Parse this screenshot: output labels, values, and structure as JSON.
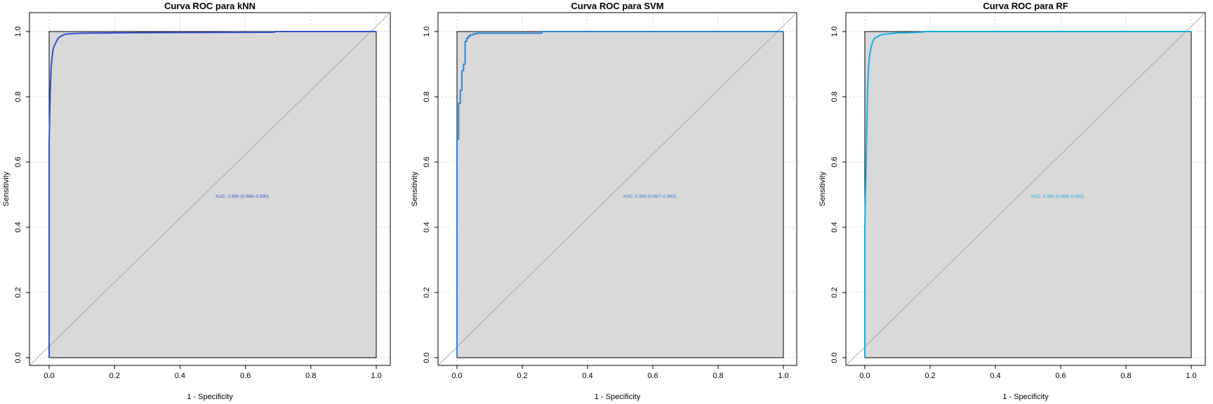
{
  "colors": {
    "background": "#ffffff",
    "plot_fill": "#d9d9d9",
    "grid": "#cfcfcf",
    "diagonal": "#9a9a9a",
    "frame": "#000000"
  },
  "chart_data": [
    {
      "type": "line",
      "title": "Curva ROC para kNN",
      "xlabel": "1 - Specificity",
      "ylabel": "Sensitivity",
      "xlim": [
        0,
        1
      ],
      "ylim": [
        0,
        1
      ],
      "x_ticks": [
        0.0,
        0.2,
        0.4,
        0.6,
        0.8,
        1.0
      ],
      "y_ticks": [
        0.0,
        0.2,
        0.4,
        0.6,
        0.8,
        1.0
      ],
      "x_tick_labels": [
        "0.0",
        "0.2",
        "0.4",
        "0.6",
        "0.8",
        "1.0"
      ],
      "y_tick_labels": [
        "0.0",
        "0.2",
        "0.4",
        "0.6",
        "0.8",
        "1.0"
      ],
      "grid": true,
      "auc_label": "AUC: 0.990 (0.989–0.990)",
      "auc_label_position": [
        0.59,
        0.49
      ],
      "series": [
        {
          "color": "#3050d0",
          "x": [
            0.0,
            0.0,
            0.0,
            0.002,
            0.003,
            0.005,
            0.006,
            0.008,
            0.01,
            0.012,
            0.015,
            0.02,
            0.025,
            0.03,
            0.04,
            0.05,
            0.06,
            0.08,
            0.1,
            0.2,
            0.38,
            0.69,
            0.69,
            1.0
          ],
          "y": [
            0.0,
            0.25,
            0.66,
            0.75,
            0.81,
            0.86,
            0.89,
            0.91,
            0.93,
            0.945,
            0.955,
            0.965,
            0.975,
            0.982,
            0.988,
            0.992,
            0.993,
            0.994,
            0.995,
            0.996,
            0.997,
            0.998,
            1.0,
            1.0
          ]
        }
      ]
    },
    {
      "type": "line",
      "title": "Curva ROC para SVM",
      "xlabel": "1 - Specificity",
      "ylabel": "Sensitivity",
      "xlim": [
        0,
        1
      ],
      "ylim": [
        0,
        1
      ],
      "x_ticks": [
        0.0,
        0.2,
        0.4,
        0.6,
        0.8,
        1.0
      ],
      "y_ticks": [
        0.0,
        0.2,
        0.4,
        0.6,
        0.8,
        1.0
      ],
      "x_tick_labels": [
        "0.0",
        "0.2",
        "0.4",
        "0.6",
        "0.8",
        "1.0"
      ],
      "y_tick_labels": [
        "0.0",
        "0.2",
        "0.4",
        "0.6",
        "0.8",
        "1.0"
      ],
      "grid": true,
      "auc_label": "AUC: 0.993 (0.987–0.999)",
      "auc_label_position": [
        0.59,
        0.49
      ],
      "series": [
        {
          "color": "#2b84e0",
          "x": [
            0.0,
            0.0,
            0.005,
            0.005,
            0.01,
            0.01,
            0.015,
            0.015,
            0.02,
            0.02,
            0.025,
            0.025,
            0.03,
            0.03,
            0.035,
            0.035,
            0.04,
            0.04,
            0.05,
            0.05,
            0.06,
            0.06,
            0.26,
            0.26,
            1.0
          ],
          "y": [
            0.0,
            0.67,
            0.67,
            0.78,
            0.78,
            0.82,
            0.82,
            0.88,
            0.88,
            0.9,
            0.9,
            0.97,
            0.97,
            0.98,
            0.98,
            0.985,
            0.985,
            0.99,
            0.99,
            0.993,
            0.993,
            0.995,
            0.995,
            1.0,
            1.0
          ]
        }
      ]
    },
    {
      "type": "line",
      "title": "Curva ROC para RF",
      "xlabel": "1 - Specificity",
      "ylabel": "Sensitivity",
      "xlim": [
        0,
        1
      ],
      "ylim": [
        0,
        1
      ],
      "x_ticks": [
        0.0,
        0.2,
        0.4,
        0.6,
        0.8,
        1.0
      ],
      "y_ticks": [
        0.0,
        0.2,
        0.4,
        0.6,
        0.8,
        1.0
      ],
      "x_tick_labels": [
        "0.0",
        "0.2",
        "0.4",
        "0.6",
        "0.8",
        "1.0"
      ],
      "y_tick_labels": [
        "0.0",
        "0.2",
        "0.4",
        "0.6",
        "0.8",
        "1.0"
      ],
      "grid": true,
      "auc_label": "AUC: 0.990 (0.989–0.992)",
      "auc_label_position": [
        0.59,
        0.49
      ],
      "series": [
        {
          "color": "#12aee8",
          "x": [
            0.0,
            0.0,
            0.002,
            0.004,
            0.006,
            0.008,
            0.01,
            0.012,
            0.015,
            0.02,
            0.025,
            0.03,
            0.04,
            0.05,
            0.06,
            0.08,
            0.1,
            0.14,
            0.18,
            0.18,
            1.0
          ],
          "y": [
            0.0,
            0.4,
            0.5,
            0.6,
            0.7,
            0.8,
            0.86,
            0.9,
            0.93,
            0.955,
            0.97,
            0.98,
            0.985,
            0.99,
            0.992,
            0.994,
            0.996,
            0.997,
            0.998,
            1.0,
            1.0
          ]
        }
      ]
    }
  ]
}
